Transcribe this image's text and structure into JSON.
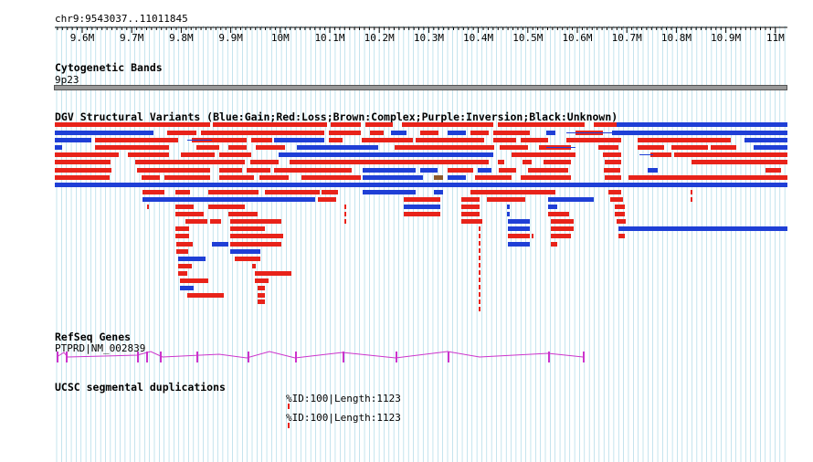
{
  "location": "chr9:9543037..11011845",
  "ruler_ticks": [
    "9.6M",
    "9.7M",
    "9.8M",
    "9.9M",
    "10M",
    "10.1M",
    "10.2M",
    "10.3M",
    "10.4M",
    "10.5M",
    "10.6M",
    "10.7M",
    "10.8M",
    "10.9M",
    "11M"
  ],
  "tracks": {
    "cytoband": {
      "title": "Cytogenetic Bands",
      "band": "9p23"
    },
    "dgv": {
      "title": "DGV Structural Variants (Blue:Gain;Red:Loss;Brown:Complex;Purple:Inversion;Black:Unknown)"
    },
    "refseq": {
      "title": "RefSeq Genes",
      "gene": "PTPRD|NM_002839"
    },
    "segdup": {
      "title": "UCSC segmental duplications",
      "items": [
        "%ID:100|Length:1123",
        "%ID:100|Length:1123"
      ]
    }
  },
  "colors": {
    "gain": "#1f3fd6",
    "loss": "#e8231a",
    "complex": "#8b5a2b",
    "gene": "#cc33cc",
    "grid": "#9fd3e3",
    "band": "#999999"
  }
}
